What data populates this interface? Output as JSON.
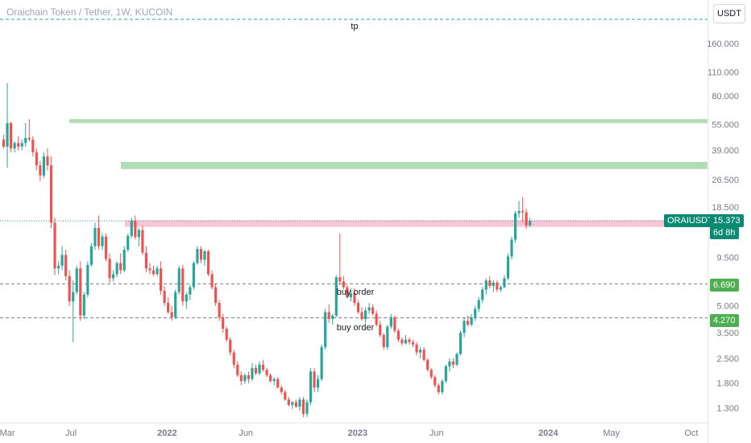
{
  "header": {
    "title": "Oraichain Token / Tether, 1W, KUCOIN",
    "currency_button": "USDT"
  },
  "annotations": {
    "tp": "tp",
    "buy_order_1": "buy order",
    "buy_order_2": "buy order"
  },
  "price_tags": {
    "symbol": "ORAIUSDT",
    "last": "15.373",
    "countdown": "6d 8h",
    "level_high": "6.690",
    "level_low": "4.270"
  },
  "colors": {
    "up": "#26a69a",
    "down": "#ef5350",
    "zone_green": "#a5d6a7",
    "zone_red": "#f8bbd0",
    "dashed": "#26a69a",
    "neutral_dash": "#787b86",
    "axis_text": "#787b86"
  },
  "chart_data": {
    "type": "candlestick",
    "title": "Oraichain Token / Tether, 1W, KUCOIN",
    "y_scale": "log",
    "ylim": [
      1.1,
      230
    ],
    "y_ticks": [
      "160.000",
      "110.000",
      "80.000",
      "55.000",
      "39.000",
      "26.500",
      "18.500",
      "9.500",
      "5.000",
      "3.500",
      "2.500",
      "1.800",
      "1.300"
    ],
    "y_tick_values": [
      160,
      110,
      80,
      55,
      39,
      26.5,
      18.5,
      9.5,
      5,
      3.5,
      2.5,
      1.8,
      1.3
    ],
    "x_ticks": [
      "Mar",
      "Jul",
      "2022",
      "Jun",
      "2023",
      "Jun",
      "2024",
      "May",
      "Oct"
    ],
    "x_range": [
      "2021-02-15",
      "2024-11-01"
    ],
    "x_tick_dates": [
      "2021-03-01",
      "2021-07-01",
      "2022-01-01",
      "2022-06-01",
      "2023-01-01",
      "2023-06-01",
      "2024-01-01",
      "2024-05-01",
      "2024-10-01"
    ],
    "zones": [
      {
        "kind": "resistance",
        "from": 56,
        "to": 59
      },
      {
        "kind": "resistance",
        "from": 30.5,
        "to": 33.5
      },
      {
        "kind": "supply",
        "from": 14.2,
        "to": 15.5
      }
    ],
    "levels": [
      {
        "name": "tp",
        "value": 200
      },
      {
        "name": "buy order",
        "value": 6.69
      },
      {
        "name": "buy order",
        "value": 4.27
      },
      {
        "name": "last",
        "value": 15.373
      }
    ],
    "series_start": "2021-02-22",
    "series_interval_days": 7,
    "ohlc": [
      [
        45,
        48,
        40,
        41
      ],
      [
        41,
        95,
        31,
        56
      ],
      [
        56,
        57,
        38,
        40
      ],
      [
        40,
        44,
        38,
        43
      ],
      [
        43,
        47,
        39,
        41
      ],
      [
        41,
        45,
        39,
        43
      ],
      [
        43,
        56,
        41,
        46
      ],
      [
        46,
        59,
        44,
        45
      ],
      [
        45,
        47,
        36,
        38
      ],
      [
        38,
        40,
        30,
        32
      ],
      [
        32,
        34,
        26,
        28
      ],
      [
        28,
        38,
        27,
        36
      ],
      [
        36,
        40,
        30,
        32
      ],
      [
        32,
        36,
        14,
        15
      ],
      [
        15,
        16,
        7.5,
        8.2
      ],
      [
        8.2,
        9,
        7.6,
        8.5
      ],
      [
        8.5,
        11,
        8,
        9.8
      ],
      [
        9.8,
        10.5,
        7,
        7.4
      ],
      [
        7.4,
        8,
        5,
        5.3
      ],
      [
        5.3,
        7,
        3.1,
        6
      ],
      [
        6,
        8.5,
        5.8,
        8.2
      ],
      [
        8.2,
        9,
        4.1,
        4.4
      ],
      [
        4.4,
        6,
        4.2,
        5.8
      ],
      [
        5.8,
        9,
        5.6,
        8.6
      ],
      [
        8.6,
        11.5,
        8.4,
        11
      ],
      [
        11,
        15,
        10.5,
        14
      ],
      [
        14,
        16.5,
        10.5,
        11
      ],
      [
        11,
        13,
        10.5,
        12.5
      ],
      [
        12.5,
        13,
        9,
        9.3
      ],
      [
        9.3,
        10,
        6.8,
        7.2
      ],
      [
        7.2,
        8,
        6.9,
        7.6
      ],
      [
        7.6,
        9,
        7.3,
        8.8
      ],
      [
        8.8,
        10,
        7.6,
        8
      ],
      [
        8,
        11,
        7.8,
        10.5
      ],
      [
        10.5,
        13,
        10.2,
        12.6
      ],
      [
        12.6,
        16,
        12.2,
        15.4
      ],
      [
        15.4,
        16.5,
        12,
        12.4
      ],
      [
        12.4,
        14,
        11,
        13.6
      ],
      [
        13.6,
        14.5,
        9.8,
        10.1
      ],
      [
        10.1,
        11,
        7.8,
        8.2
      ],
      [
        8.2,
        8.8,
        7.6,
        8
      ],
      [
        8,
        8.5,
        7.4,
        7.6
      ],
      [
        7.6,
        8.5,
        7.4,
        8.2
      ],
      [
        8.2,
        9,
        5.8,
        6.1
      ],
      [
        6.1,
        6.5,
        5,
        5.2
      ],
      [
        5.2,
        5.6,
        4.5,
        4.6
      ],
      [
        4.6,
        5,
        4.1,
        4.3
      ],
      [
        4.3,
        6.2,
        4.2,
        6
      ],
      [
        6,
        8.5,
        5.8,
        8.2
      ],
      [
        8.2,
        8.6,
        5,
        5.3
      ],
      [
        5.3,
        6,
        4.8,
        5.8
      ],
      [
        5.8,
        6.6,
        5.4,
        6.4
      ],
      [
        6.4,
        9,
        6.2,
        8.8
      ],
      [
        8.8,
        11,
        8.6,
        10.6
      ],
      [
        10.6,
        11,
        8.8,
        9.2
      ],
      [
        9.2,
        10.5,
        8.5,
        10.3
      ],
      [
        10.3,
        10.5,
        7.4,
        7.6
      ],
      [
        7.6,
        8,
        6.2,
        6.4
      ],
      [
        6.4,
        6.7,
        5,
        5.2
      ],
      [
        5.2,
        5.4,
        4.1,
        4.3
      ],
      [
        4.3,
        4.5,
        3.5,
        3.7
      ],
      [
        3.7,
        3.8,
        3.1,
        3.2
      ],
      [
        3.2,
        3.3,
        2.6,
        2.7
      ],
      [
        2.7,
        2.8,
        2.2,
        2.3
      ],
      [
        2.3,
        2.4,
        1.95,
        2.0
      ],
      [
        2.0,
        2.1,
        1.75,
        1.85
      ],
      [
        1.85,
        2.05,
        1.78,
        2.0
      ],
      [
        2.0,
        2.1,
        1.8,
        1.9
      ],
      [
        1.9,
        2.35,
        1.85,
        2.2
      ],
      [
        2.2,
        2.3,
        2.0,
        2.05
      ],
      [
        2.05,
        2.4,
        2.0,
        2.3
      ],
      [
        2.3,
        2.45,
        2.1,
        2.15
      ],
      [
        2.15,
        2.2,
        1.95,
        2.0
      ],
      [
        2.0,
        2.05,
        1.82,
        1.85
      ],
      [
        1.85,
        1.95,
        1.75,
        1.9
      ],
      [
        1.9,
        1.95,
        1.68,
        1.7
      ],
      [
        1.7,
        1.75,
        1.55,
        1.6
      ],
      [
        1.6,
        1.65,
        1.42,
        1.45
      ],
      [
        1.45,
        1.5,
        1.32,
        1.35
      ],
      [
        1.35,
        1.42,
        1.28,
        1.4
      ],
      [
        1.4,
        1.45,
        1.3,
        1.32
      ],
      [
        1.32,
        1.5,
        1.25,
        1.45
      ],
      [
        1.45,
        1.5,
        1.15,
        1.2
      ],
      [
        1.2,
        1.45,
        1.15,
        1.4
      ],
      [
        1.4,
        2.2,
        1.35,
        2.1
      ],
      [
        2.1,
        2.2,
        1.6,
        1.7
      ],
      [
        1.7,
        2.0,
        1.6,
        1.9
      ],
      [
        1.9,
        3.0,
        1.85,
        2.9
      ],
      [
        2.9,
        4.8,
        2.8,
        4.6
      ],
      [
        4.6,
        5.1,
        4.0,
        4.2
      ],
      [
        4.2,
        4.5,
        3.9,
        4.4
      ],
      [
        4.4,
        7.5,
        4.3,
        7.3
      ],
      [
        7.3,
        13,
        6.6,
        6.9
      ],
      [
        6.9,
        7.4,
        6.2,
        6.4
      ],
      [
        6.4,
        6.6,
        5.5,
        5.6
      ],
      [
        5.6,
        6.3,
        5.3,
        5.9
      ],
      [
        5.9,
        6.3,
        5.0,
        5.2
      ],
      [
        5.2,
        5.4,
        4.5,
        4.6
      ],
      [
        4.6,
        4.9,
        4.1,
        4.2
      ],
      [
        4.2,
        4.9,
        4.0,
        4.7
      ],
      [
        4.7,
        5.2,
        4.5,
        4.9
      ],
      [
        4.9,
        5.1,
        4.4,
        4.5
      ],
      [
        4.5,
        4.7,
        3.8,
        3.9
      ],
      [
        3.9,
        4.1,
        3.3,
        3.4
      ],
      [
        3.4,
        3.5,
        2.8,
        2.9
      ],
      [
        2.9,
        3.9,
        2.8,
        3.8
      ],
      [
        3.8,
        4.5,
        3.7,
        4.3
      ],
      [
        4.3,
        4.4,
        3.5,
        3.6
      ],
      [
        3.6,
        3.7,
        3.1,
        3.2
      ],
      [
        3.2,
        3.3,
        2.95,
        3.05
      ],
      [
        3.05,
        3.4,
        3.0,
        3.2
      ],
      [
        3.2,
        3.3,
        3.0,
        3.1
      ],
      [
        3.1,
        3.2,
        2.9,
        3.0
      ],
      [
        3.0,
        3.1,
        2.6,
        2.7
      ],
      [
        2.7,
        2.9,
        2.5,
        2.8
      ],
      [
        2.8,
        2.9,
        2.4,
        2.45
      ],
      [
        2.45,
        2.5,
        2.1,
        2.15
      ],
      [
        2.15,
        2.2,
        1.9,
        1.95
      ],
      [
        1.95,
        2.0,
        1.7,
        1.75
      ],
      [
        1.75,
        1.8,
        1.55,
        1.6
      ],
      [
        1.6,
        1.9,
        1.55,
        1.85
      ],
      [
        1.85,
        2.3,
        1.8,
        2.25
      ],
      [
        2.25,
        2.5,
        2.1,
        2.4
      ],
      [
        2.4,
        2.5,
        2.2,
        2.3
      ],
      [
        2.3,
        2.7,
        2.25,
        2.65
      ],
      [
        2.65,
        3.6,
        2.6,
        3.5
      ],
      [
        3.5,
        4.3,
        3.3,
        4.1
      ],
      [
        4.1,
        4.4,
        3.8,
        3.9
      ],
      [
        3.9,
        4.5,
        3.8,
        4.3
      ],
      [
        4.3,
        5.0,
        4.1,
        4.8
      ],
      [
        4.8,
        5.6,
        4.6,
        5.4
      ],
      [
        5.4,
        6.4,
        5.2,
        6.2
      ],
      [
        6.2,
        7.2,
        5.8,
        7.0
      ],
      [
        7.0,
        7.4,
        6.3,
        6.5
      ],
      [
        6.5,
        7.0,
        6.0,
        6.8
      ],
      [
        6.8,
        7.0,
        6.0,
        6.2
      ],
      [
        6.2,
        6.6,
        6.0,
        6.4
      ],
      [
        6.4,
        7.5,
        6.3,
        7.2
      ],
      [
        7.2,
        10,
        7.0,
        9.6
      ],
      [
        9.6,
        12.5,
        9.2,
        12
      ],
      [
        12,
        17.5,
        11.5,
        17
      ],
      [
        17,
        20,
        16,
        17.5
      ],
      [
        17.5,
        21,
        15,
        17.2
      ],
      [
        17.2,
        18,
        13.8,
        14.5
      ],
      [
        14.5,
        16,
        14.2,
        15.373
      ]
    ]
  }
}
